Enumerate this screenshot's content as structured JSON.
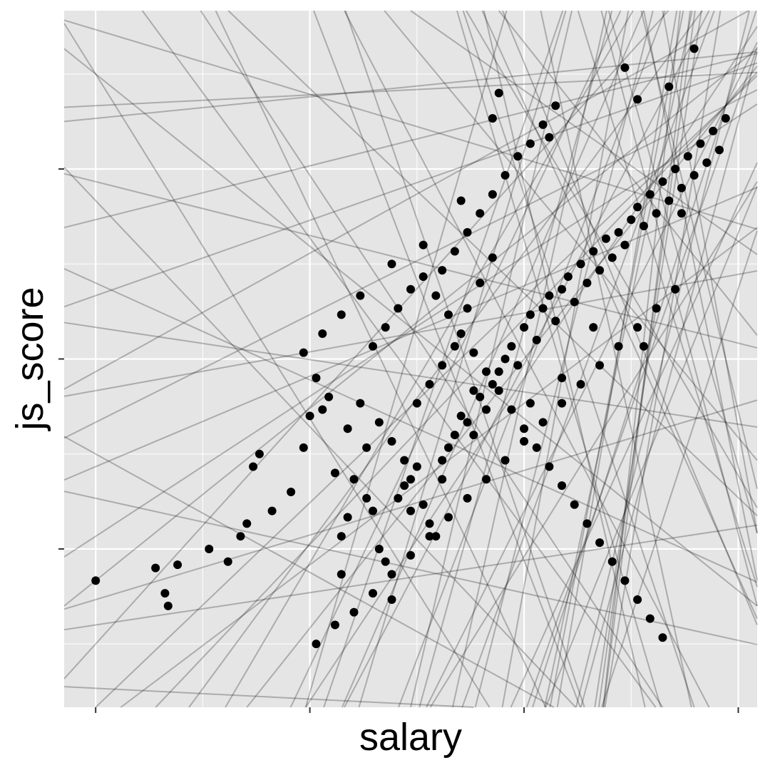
{
  "chart_data": {
    "type": "scatter",
    "title": "",
    "xlabel": "salary",
    "ylabel": "js_score",
    "x_tick_labels": [],
    "y_tick_labels": [],
    "xlim": [
      -0.05,
      1.05
    ],
    "ylim": [
      -0.05,
      1.05
    ],
    "grid": true,
    "colors": {
      "panel": "#e5e5e5",
      "grid": "#ffffff",
      "points": "#000000",
      "lines": "#000000"
    },
    "points": [
      [
        0.0,
        0.15
      ],
      [
        0.095,
        0.17
      ],
      [
        0.11,
        0.13
      ],
      [
        0.115,
        0.11
      ],
      [
        0.13,
        0.175
      ],
      [
        0.21,
        0.18
      ],
      [
        0.23,
        0.22
      ],
      [
        0.25,
        0.33
      ],
      [
        0.26,
        0.35
      ],
      [
        0.33,
        0.36
      ],
      [
        0.35,
        0.47
      ],
      [
        0.36,
        0.42
      ],
      [
        0.38,
        0.32
      ],
      [
        0.39,
        0.16
      ],
      [
        0.39,
        0.22
      ],
      [
        0.4,
        0.25
      ],
      [
        0.41,
        0.31
      ],
      [
        0.42,
        0.43
      ],
      [
        0.43,
        0.28
      ],
      [
        0.44,
        0.26
      ],
      [
        0.45,
        0.2
      ],
      [
        0.46,
        0.18
      ],
      [
        0.47,
        0.12
      ],
      [
        0.48,
        0.28
      ],
      [
        0.49,
        0.3
      ],
      [
        0.5,
        0.31
      ],
      [
        0.51,
        0.33
      ],
      [
        0.52,
        0.27
      ],
      [
        0.53,
        0.24
      ],
      [
        0.54,
        0.22
      ],
      [
        0.55,
        0.34
      ],
      [
        0.56,
        0.36
      ],
      [
        0.57,
        0.38
      ],
      [
        0.58,
        0.41
      ],
      [
        0.59,
        0.4
      ],
      [
        0.6,
        0.45
      ],
      [
        0.61,
        0.44
      ],
      [
        0.62,
        0.42
      ],
      [
        0.63,
        0.46
      ],
      [
        0.64,
        0.48
      ],
      [
        0.65,
        0.5
      ],
      [
        0.66,
        0.52
      ],
      [
        0.67,
        0.49
      ],
      [
        0.68,
        0.55
      ],
      [
        0.69,
        0.57
      ],
      [
        0.7,
        0.53
      ],
      [
        0.71,
        0.58
      ],
      [
        0.72,
        0.6
      ],
      [
        0.73,
        0.56
      ],
      [
        0.74,
        0.61
      ],
      [
        0.75,
        0.63
      ],
      [
        0.76,
        0.59
      ],
      [
        0.77,
        0.65
      ],
      [
        0.78,
        0.62
      ],
      [
        0.79,
        0.67
      ],
      [
        0.8,
        0.64
      ],
      [
        0.81,
        0.69
      ],
      [
        0.82,
        0.66
      ],
      [
        0.83,
        0.7
      ],
      [
        0.84,
        0.68
      ],
      [
        0.85,
        0.72
      ],
      [
        0.86,
        0.74
      ],
      [
        0.87,
        0.71
      ],
      [
        0.88,
        0.76
      ],
      [
        0.89,
        0.73
      ],
      [
        0.9,
        0.78
      ],
      [
        0.91,
        0.75
      ],
      [
        0.92,
        0.8
      ],
      [
        0.93,
        0.77
      ],
      [
        0.94,
        0.82
      ],
      [
        0.95,
        0.79
      ],
      [
        0.96,
        0.84
      ],
      [
        0.97,
        0.81
      ],
      [
        0.98,
        0.86
      ],
      [
        0.99,
        0.83
      ],
      [
        1.0,
        0.88
      ],
      [
        0.44,
        0.52
      ],
      [
        0.46,
        0.55
      ],
      [
        0.48,
        0.58
      ],
      [
        0.5,
        0.61
      ],
      [
        0.52,
        0.63
      ],
      [
        0.54,
        0.6
      ],
      [
        0.56,
        0.57
      ],
      [
        0.58,
        0.54
      ],
      [
        0.6,
        0.51
      ],
      [
        0.62,
        0.48
      ],
      [
        0.64,
        0.45
      ],
      [
        0.66,
        0.42
      ],
      [
        0.68,
        0.39
      ],
      [
        0.7,
        0.36
      ],
      [
        0.72,
        0.33
      ],
      [
        0.74,
        0.3
      ],
      [
        0.76,
        0.27
      ],
      [
        0.78,
        0.24
      ],
      [
        0.8,
        0.21
      ],
      [
        0.82,
        0.18
      ],
      [
        0.84,
        0.15
      ],
      [
        0.86,
        0.12
      ],
      [
        0.88,
        0.09
      ],
      [
        0.9,
        0.06
      ],
      [
        0.35,
        0.05
      ],
      [
        0.38,
        0.08
      ],
      [
        0.41,
        0.1
      ],
      [
        0.44,
        0.13
      ],
      [
        0.47,
        0.16
      ],
      [
        0.5,
        0.19
      ],
      [
        0.53,
        0.22
      ],
      [
        0.56,
        0.25
      ],
      [
        0.59,
        0.28
      ],
      [
        0.62,
        0.31
      ],
      [
        0.65,
        0.34
      ],
      [
        0.68,
        0.37
      ],
      [
        0.71,
        0.4
      ],
      [
        0.74,
        0.43
      ],
      [
        0.77,
        0.46
      ],
      [
        0.8,
        0.49
      ],
      [
        0.83,
        0.52
      ],
      [
        0.86,
        0.55
      ],
      [
        0.89,
        0.58
      ],
      [
        0.92,
        0.61
      ],
      [
        0.63,
        0.88
      ],
      [
        0.64,
        0.92
      ],
      [
        0.72,
        0.85
      ],
      [
        0.84,
        0.96
      ],
      [
        0.86,
        0.91
      ],
      [
        0.91,
        0.93
      ],
      [
        0.95,
        0.99
      ],
      [
        0.93,
        0.73
      ],
      [
        0.87,
        0.52
      ],
      [
        0.79,
        0.55
      ],
      [
        0.74,
        0.47
      ],
      [
        0.69,
        0.43
      ],
      [
        0.6,
        0.38
      ],
      [
        0.55,
        0.31
      ],
      [
        0.5,
        0.26
      ],
      [
        0.43,
        0.36
      ],
      [
        0.4,
        0.39
      ],
      [
        0.37,
        0.44
      ],
      [
        0.34,
        0.41
      ],
      [
        0.31,
        0.29
      ],
      [
        0.28,
        0.26
      ],
      [
        0.24,
        0.24
      ],
      [
        0.18,
        0.2
      ],
      [
        0.55,
        0.64
      ],
      [
        0.57,
        0.67
      ],
      [
        0.59,
        0.7
      ],
      [
        0.61,
        0.73
      ],
      [
        0.63,
        0.76
      ],
      [
        0.65,
        0.79
      ],
      [
        0.67,
        0.82
      ],
      [
        0.69,
        0.84
      ],
      [
        0.71,
        0.87
      ],
      [
        0.73,
        0.9
      ],
      [
        0.58,
        0.75
      ],
      [
        0.52,
        0.68
      ],
      [
        0.47,
        0.65
      ],
      [
        0.42,
        0.6
      ],
      [
        0.39,
        0.57
      ],
      [
        0.36,
        0.54
      ],
      [
        0.33,
        0.51
      ],
      [
        0.45,
        0.4
      ],
      [
        0.47,
        0.37
      ],
      [
        0.49,
        0.34
      ],
      [
        0.51,
        0.43
      ],
      [
        0.53,
        0.46
      ],
      [
        0.55,
        0.49
      ],
      [
        0.57,
        0.52
      ],
      [
        0.59,
        0.58
      ],
      [
        0.61,
        0.62
      ],
      [
        0.63,
        0.66
      ]
    ],
    "lines": [
      [
        -0.6,
        3.2
      ],
      [
        0.35,
        0.6
      ],
      [
        2.9,
        -1.1
      ],
      [
        -1.9,
        1.8
      ],
      [
        1.1,
        0.05
      ],
      [
        4.5,
        -2.6
      ],
      [
        -0.3,
        1.02
      ],
      [
        2.1,
        -0.7
      ],
      [
        -3.5,
        3.9
      ],
      [
        0.8,
        0.15
      ],
      [
        3.6,
        -1.9
      ],
      [
        -1.2,
        1.6
      ],
      [
        5.2,
        -3.8
      ],
      [
        0.15,
        0.08
      ],
      [
        -2.4,
        2.6
      ],
      [
        1.7,
        -0.4
      ],
      [
        -4.1,
        4.6
      ],
      [
        2.6,
        -1.3
      ],
      [
        -0.8,
        0.95
      ],
      [
        6.0,
        -4.9
      ],
      [
        0.5,
        0.4
      ],
      [
        -2.9,
        2.2
      ],
      [
        3.1,
        -2.2
      ],
      [
        -1.5,
        1.3
      ],
      [
        4.0,
        -3.1
      ],
      [
        0.25,
        0.72
      ],
      [
        -5.0,
        5.4
      ],
      [
        1.35,
        -0.25
      ],
      [
        -0.45,
        0.62
      ],
      [
        2.3,
        -0.95
      ],
      [
        7.2,
        -5.8
      ],
      [
        -3.2,
        3.5
      ],
      [
        0.95,
        -0.05
      ],
      [
        -1.7,
        2.05
      ],
      [
        3.9,
        -2.4
      ],
      [
        -0.15,
        0.55
      ],
      [
        2.75,
        -1.65
      ],
      [
        -2.1,
        1.45
      ],
      [
        5.8,
        -4.3
      ],
      [
        0.65,
        0.22
      ],
      [
        -3.8,
        4.1
      ],
      [
        1.5,
        -0.55
      ],
      [
        -0.95,
        1.25
      ],
      [
        4.7,
        -3.4
      ],
      [
        0.05,
        0.9
      ],
      [
        -2.6,
        1.95
      ],
      [
        3.35,
        -1.45
      ],
      [
        -1.05,
        0.75
      ],
      [
        6.5,
        -5.2
      ],
      [
        1.9,
        -0.8
      ],
      [
        -4.6,
        4.3
      ],
      [
        0.42,
        0.33
      ],
      [
        2.45,
        -1.8
      ],
      [
        -1.35,
        1.15
      ],
      [
        8.0,
        -6.5
      ],
      [
        -0.7,
        1.4
      ],
      [
        1.25,
        -0.35
      ],
      [
        -3.0,
        2.8
      ],
      [
        3.7,
        -2.9
      ],
      [
        0.3,
        0.12
      ],
      [
        -5.5,
        6.0
      ],
      [
        2.0,
        -1.1
      ],
      [
        -0.55,
        0.35
      ],
      [
        4.3,
        -2.2
      ],
      [
        1.05,
        -0.15
      ],
      [
        -2.2,
        2.4
      ],
      [
        3.05,
        -2.5
      ],
      [
        -1.6,
        0.95
      ],
      [
        5.5,
        -3.6
      ],
      [
        0.75,
        -0.08
      ],
      [
        -3.4,
        3.0
      ],
      [
        1.6,
        -0.9
      ],
      [
        -0.25,
        0.78
      ],
      [
        2.85,
        -2.0
      ],
      [
        9.0,
        -7.3
      ],
      [
        -1.25,
        1.85
      ],
      [
        3.45,
        -1.2
      ],
      [
        -4.3,
        3.7
      ],
      [
        0.55,
        0.48
      ],
      [
        2.2,
        -1.5
      ],
      [
        -0.05,
        -0.02
      ],
      [
        0.1,
        0.88
      ],
      [
        -0.22,
        0.28
      ],
      [
        0.18,
        0.45
      ]
    ]
  }
}
